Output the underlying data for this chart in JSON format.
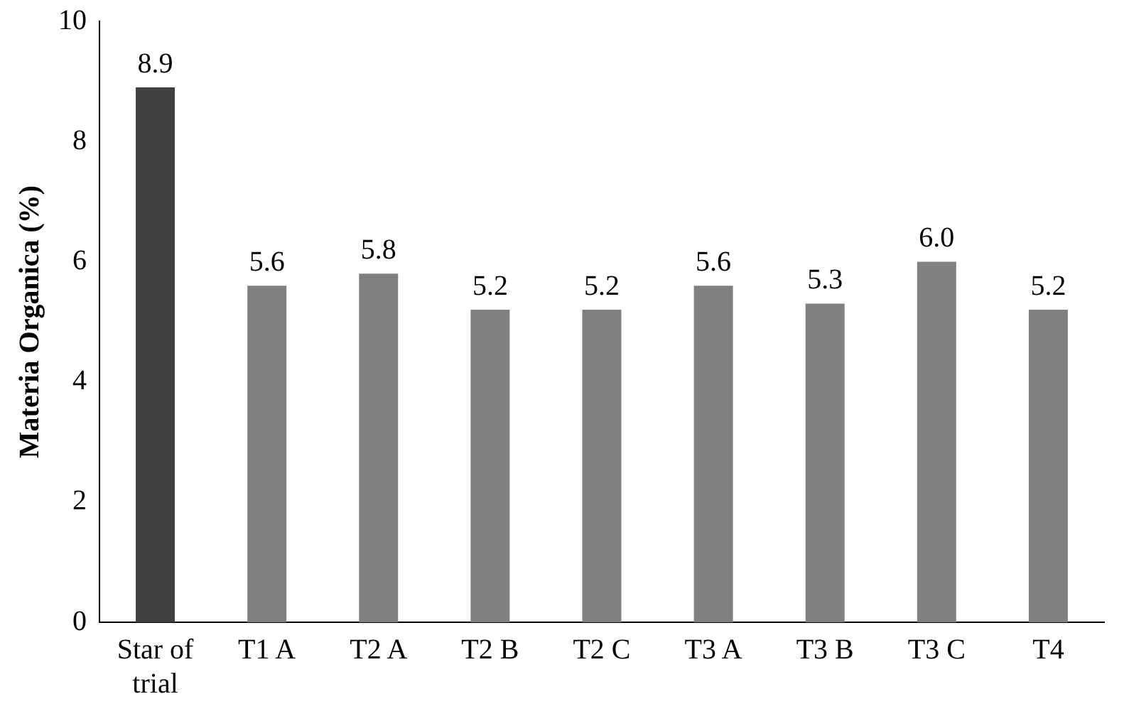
{
  "chart_data": {
    "type": "bar",
    "ylabel": "Materia Organica (%)",
    "categories": [
      "Star of trial",
      "T1 A",
      "T2 A",
      "T2 B",
      "T2 C",
      "T3 A",
      "T3 B",
      "T3 C",
      "T4"
    ],
    "values": [
      8.9,
      5.6,
      5.8,
      5.2,
      5.2,
      5.6,
      5.3,
      6.0,
      5.2
    ],
    "value_labels": [
      "8.9",
      "5.6",
      "5.8",
      "5.2",
      "5.2",
      "5.6",
      "5.3",
      "6.0",
      "5.2"
    ],
    "colors": [
      "#404040",
      "#808080",
      "#808080",
      "#808080",
      "#808080",
      "#808080",
      "#808080",
      "#808080",
      "#808080"
    ],
    "ylim": [
      0,
      10
    ],
    "yticks": [
      0,
      2,
      4,
      6,
      8,
      10
    ],
    "grid": false,
    "legend": false
  }
}
